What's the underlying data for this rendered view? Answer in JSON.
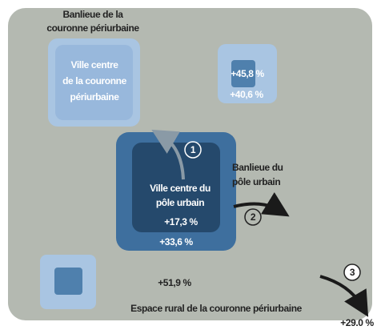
{
  "zones": {
    "suburb_periurban": {
      "label_lines": [
        "Banlieue de la",
        "couronne périurbaine"
      ]
    },
    "city_periurban": {
      "label_lines": [
        "Ville centre",
        "de la couronne",
        "périurbaine"
      ]
    },
    "periurban_box": {
      "inner": "+45,8 %",
      "outer": "+40,6 %"
    },
    "urban_center": {
      "label_lines": [
        "Ville centre du",
        "pôle urbain"
      ],
      "inner": "+17,3 %",
      "outer": "+33,6 %"
    },
    "suburb_urban": {
      "label_lines": [
        "Banlieue du",
        "pôle urbain"
      ]
    },
    "rural": {
      "value": "+51,9 %",
      "label": "Espace rural de la couronne périurbaine"
    },
    "outside": {
      "value": "+29.0 %"
    }
  },
  "steps": [
    "1",
    "2",
    "3"
  ]
}
